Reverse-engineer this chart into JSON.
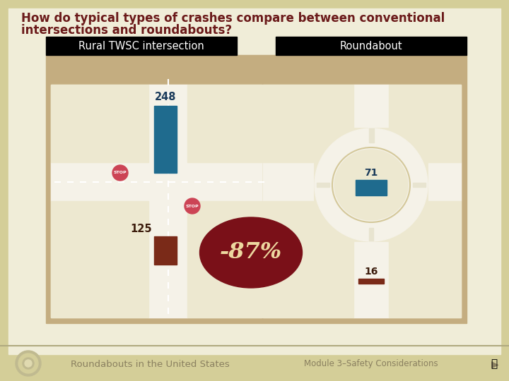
{
  "title_line1": "How do typical types of crashes compare between conventional",
  "title_line2": "intersections and roundabouts?",
  "title_color": "#6B1A1A",
  "bg_outer": "#D4CE98",
  "bg_slide": "#F0EDD8",
  "header_left": "Rural TWSC intersection",
  "header_right": "Roundabout",
  "header_bg": "#000000",
  "header_text_color": "#FFFFFF",
  "panel_bg": "#C4AD80",
  "scene_bg": "#EDE8D0",
  "road_color": "#F5F2E8",
  "road_border": "#DDD8C0",
  "bar_blue": "#1F6B8E",
  "bar_brown": "#7A2A18",
  "val_248": "248",
  "val_125": "125",
  "val_71": "71",
  "val_16": "16",
  "pct_text": "-87%",
  "pct_ellipse_color": "#7A1018",
  "pct_text_color": "#EDD8A0",
  "stop_bg": "#D06070",
  "footer_left": "Roundabouts in the United States",
  "footer_right": "Module 3–Safety Considerations",
  "footer_text_color": "#8A8060",
  "num_color_left": "#1A3A5A",
  "num_color_right": "#1A3A5A",
  "num_color_125": "#3A1A0A",
  "num_color_16": "#3A1A0A"
}
